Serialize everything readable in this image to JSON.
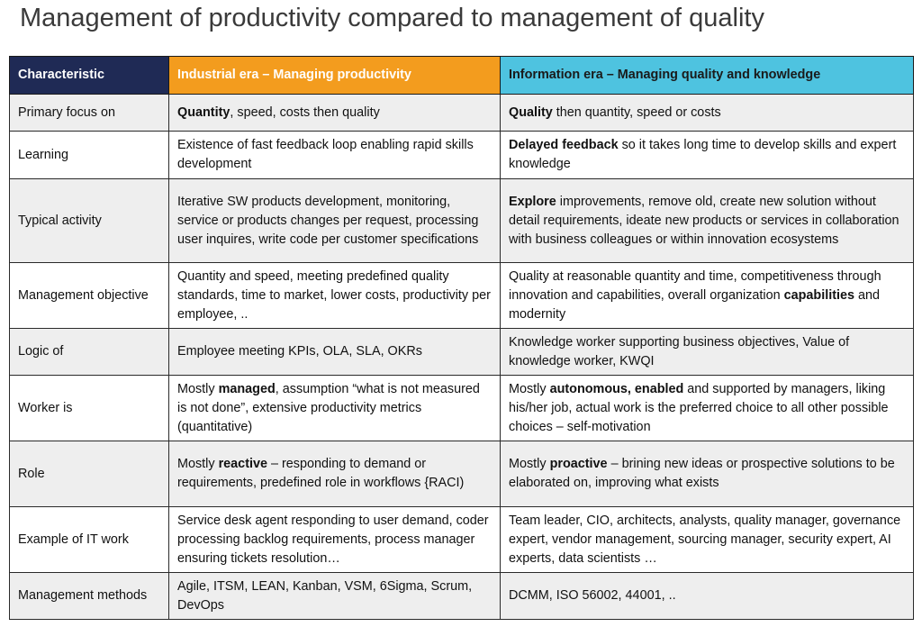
{
  "title": "Management of productivity compared to management of quality",
  "headers": {
    "characteristic": "Characteristic",
    "industrial": "Industrial era – Managing productivity",
    "information": "Information era – Managing quality and knowledge"
  },
  "rows": [
    {
      "label": "Primary focus on",
      "industrial": [
        {
          "b": "Quantity"
        },
        {
          "t": ", speed, costs then quality"
        }
      ],
      "information": [
        {
          "b": "Quality"
        },
        {
          "t": " then quantity, speed or costs"
        }
      ]
    },
    {
      "label": "Learning",
      "industrial": [
        {
          "t": "Existence of fast feedback loop enabling rapid skills development"
        }
      ],
      "information": [
        {
          "b": "Delayed feedback"
        },
        {
          "t": " so it takes long time to develop skills and expert knowledge"
        }
      ]
    },
    {
      "label": "Typical activity",
      "industrial": [
        {
          "t": "Iterative SW products development, monitoring, service or products changes per request, processing user inquires, write code per customer specifications"
        }
      ],
      "information": [
        {
          "b": "Explore"
        },
        {
          "t": " improvements, remove old, create new solution without detail requirements, ideate new products or services in collaboration with business colleagues or within innovation ecosystems"
        }
      ]
    },
    {
      "label": "Management objective",
      "industrial": [
        {
          "t": "Quantity and speed, meeting predefined quality standards, time to market, lower costs, productivity per employee, .."
        }
      ],
      "information": [
        {
          "t": "Quality at reasonable quantity and time, competitiveness through innovation and capabilities, overall organization "
        },
        {
          "b": "capabilities"
        },
        {
          "t": " and modernity"
        }
      ]
    },
    {
      "label": "Logic of",
      "industrial": [
        {
          "t": "Employee meeting KPIs, OLA, SLA, OKRs"
        }
      ],
      "information": [
        {
          "t": "Knowledge worker supporting business  objectives, Value of knowledge worker, KWQI"
        }
      ]
    },
    {
      "label": "Worker is",
      "industrial": [
        {
          "t": "Mostly "
        },
        {
          "b": "managed"
        },
        {
          "t": ", assumption “what is not measured is not done”, extensive productivity metrics (quantitative)"
        }
      ],
      "information": [
        {
          "t": "Mostly "
        },
        {
          "b": "autonomous, enabled"
        },
        {
          "t": " and supported by managers, liking his/her job, actual work is the preferred choice to all other possible choices – self-motivation"
        }
      ]
    },
    {
      "label": "Role",
      "industrial": [
        {
          "t": "Mostly "
        },
        {
          "b": "reactive"
        },
        {
          "t": " – responding to demand or requirements, predefined role in workflows {RACI)"
        }
      ],
      "information": [
        {
          "t": "Mostly "
        },
        {
          "b": "proactive"
        },
        {
          "t": " – brining new ideas or prospective solutions to be elaborated on, improving what exists"
        }
      ]
    },
    {
      "label": "Example of IT work",
      "industrial": [
        {
          "t": "Service desk agent responding to user demand, coder processing backlog requirements, process manager ensuring tickets resolution…"
        }
      ],
      "information": [
        {
          "t": "Team leader, CIO, architects, analysts, quality manager, governance expert, vendor management, sourcing manager, security expert, AI experts, data scientists …"
        }
      ]
    },
    {
      "label": "Management methods",
      "industrial": [
        {
          "t": "Agile, ITSM, LEAN, Kanban, VSM, 6Sigma, Scrum, DevOps"
        }
      ],
      "information": [
        {
          "t": "DCMM, ISO 56002, 44001, .."
        }
      ]
    }
  ]
}
